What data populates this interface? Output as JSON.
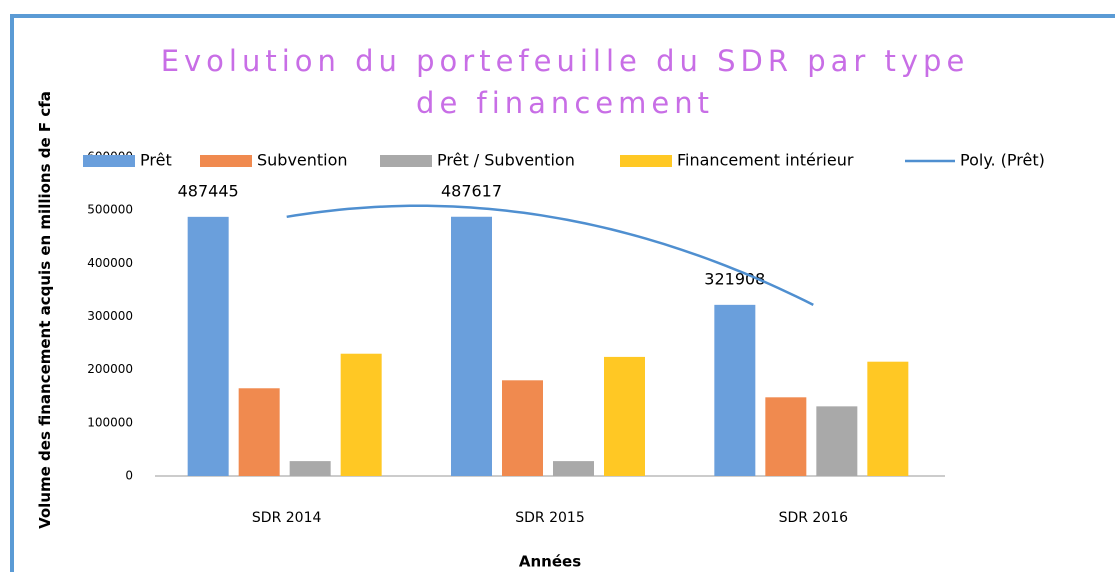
{
  "chart_data": {
    "type": "bar",
    "title": "Evolution du portefeuille du SDR par type de financement",
    "x_label": "Années",
    "y_label": "Volume des financement acquis en millions de F cfa",
    "categories": [
      "SDR 2014",
      "SDR 2015",
      "SDR 2016"
    ],
    "series": [
      {
        "name": "Prêt",
        "color": "#6a9fdc",
        "values": [
          487445,
          487617,
          321908
        ],
        "show_values": true
      },
      {
        "name": "Subvention",
        "color": "#f08a4f",
        "values": [
          165000,
          180000,
          148000
        ]
      },
      {
        "name": "Prêt / Subvention",
        "color": "#a9a9a9",
        "values": [
          28000,
          28000,
          131000
        ]
      },
      {
        "name": "Financement intérieur",
        "color": "#ffc824",
        "values": [
          230000,
          224000,
          215000
        ]
      }
    ],
    "trendline": {
      "name": "Poly. (Prêt)",
      "series": 0,
      "order": 2,
      "color": "#4f8fd0"
    },
    "ylim": [
      0,
      600000
    ],
    "yticks": [
      0,
      100000,
      200000,
      300000,
      400000,
      500000,
      600000
    ],
    "legend": "top"
  }
}
